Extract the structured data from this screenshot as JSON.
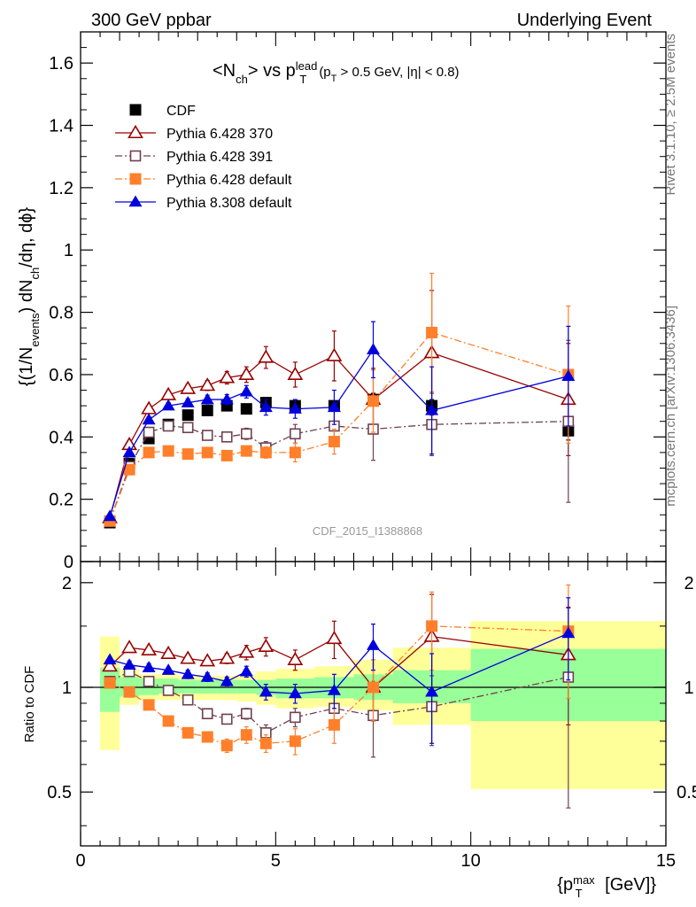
{
  "header": {
    "left": "300 GeV ppbar",
    "right": "Underlying Event"
  },
  "side_labels": {
    "rivet": "Rivet 3.1.10, ≥ 2.5M events",
    "mcplots": "mcplots.cern.ch [arXiv:1306.3436]"
  },
  "watermark": "CDF_2015_I1388868",
  "chart_data": [
    {
      "type": "scatter",
      "title": "<N_ch> vs p_T^lead (p_T > 0.5 GeV, |η| < 0.8)",
      "ylabel": "{(1/N_events) dN_ch/dη, dϕ}",
      "ylim": [
        0,
        1.7
      ],
      "yticks": [
        0,
        0.2,
        0.4,
        0.6,
        0.8,
        1,
        1.2,
        1.4,
        1.6
      ],
      "ytick_labels": [
        "0",
        "0.2",
        "0.4",
        "0.6",
        "0.8",
        "1",
        "1.2",
        "1.4",
        "1.6"
      ],
      "xlim": [
        0,
        15
      ],
      "legend_placement": "top-left",
      "series": [
        {
          "name": "CDF",
          "color": "#000000",
          "marker": "filled-square",
          "line": "none",
          "x": [
            0.75,
            1.25,
            1.75,
            2.25,
            2.75,
            3.25,
            3.75,
            4.25,
            4.75,
            5.5,
            6.5,
            7.5,
            9,
            12.5
          ],
          "y": [
            0.125,
            0.315,
            0.395,
            0.44,
            0.47,
            0.485,
            0.5,
            0.49,
            0.51,
            0.5,
            0.5,
            0.52,
            0.5,
            0.42
          ],
          "err": [
            0.005,
            0.005,
            0.005,
            0.006,
            0.006,
            0.007,
            0.008,
            0.009,
            0.01,
            0.012,
            0.015,
            0.02,
            0.02,
            0.03
          ]
        },
        {
          "name": "Pythia 6.428 370",
          "color": "#990000",
          "marker": "open-triangle",
          "line": "solid",
          "x": [
            0.75,
            1.25,
            1.75,
            2.25,
            2.75,
            3.25,
            3.75,
            4.25,
            4.75,
            5.5,
            6.5,
            7.5,
            9,
            12.5
          ],
          "y": [
            0.14,
            0.375,
            0.49,
            0.535,
            0.555,
            0.565,
            0.59,
            0.6,
            0.655,
            0.6,
            0.66,
            0.52,
            0.67,
            0.52
          ],
          "err": [
            0.004,
            0.008,
            0.01,
            0.012,
            0.014,
            0.016,
            0.02,
            0.025,
            0.035,
            0.04,
            0.08,
            0.1,
            0.2,
            0.18
          ]
        },
        {
          "name": "Pythia 6.428 391",
          "color": "#70404f",
          "marker": "open-square",
          "line": "dashdot",
          "x": [
            0.75,
            1.25,
            1.75,
            2.25,
            2.75,
            3.25,
            3.75,
            4.25,
            4.75,
            5.5,
            6.5,
            7.5,
            9,
            12.5
          ],
          "y": [
            0.13,
            0.305,
            0.415,
            0.435,
            0.43,
            0.405,
            0.4,
            0.41,
            0.365,
            0.41,
            0.435,
            0.425,
            0.44,
            0.45
          ],
          "err": [
            0.004,
            0.008,
            0.01,
            0.012,
            0.014,
            0.015,
            0.016,
            0.018,
            0.02,
            0.03,
            0.05,
            0.1,
            0.1,
            0.26
          ]
        },
        {
          "name": "Pythia 6.428 default",
          "color": "#ff7f2a",
          "marker": "filled-square",
          "line": "dashdot",
          "x": [
            0.75,
            1.25,
            1.75,
            2.25,
            2.75,
            3.25,
            3.75,
            4.25,
            4.75,
            5.5,
            6.5,
            7.5,
            9,
            12.5
          ],
          "y": [
            0.13,
            0.295,
            0.35,
            0.355,
            0.345,
            0.35,
            0.34,
            0.355,
            0.35,
            0.35,
            0.385,
            0.515,
            0.735,
            0.6
          ],
          "err": [
            0.004,
            0.006,
            0.008,
            0.008,
            0.01,
            0.01,
            0.012,
            0.015,
            0.018,
            0.03,
            0.04,
            0.1,
            0.19,
            0.22
          ]
        },
        {
          "name": "Pythia 8.308 default",
          "color": "#0000dd",
          "marker": "filled-triangle",
          "line": "solid",
          "x": [
            0.75,
            1.25,
            1.75,
            2.25,
            2.75,
            3.25,
            3.75,
            4.25,
            4.75,
            5.5,
            6.5,
            7.5,
            9,
            12.5
          ],
          "y": [
            0.145,
            0.35,
            0.455,
            0.5,
            0.51,
            0.52,
            0.52,
            0.545,
            0.495,
            0.49,
            0.495,
            0.68,
            0.485,
            0.595
          ],
          "err": [
            0.004,
            0.008,
            0.01,
            0.01,
            0.012,
            0.014,
            0.016,
            0.02,
            0.025,
            0.03,
            0.055,
            0.09,
            0.14,
            0.16
          ]
        }
      ]
    },
    {
      "type": "scatter",
      "ylabel": "Ratio to CDF",
      "xlabel": "{p_T^max [GeV]}",
      "ylog": true,
      "ylim": [
        0.35,
        2.3
      ],
      "yticks": [
        0.5,
        1,
        2
      ],
      "ytick_labels": [
        "0.5",
        "1",
        "2"
      ],
      "xlim": [
        0,
        15
      ],
      "xticks": [
        0,
        5,
        10,
        15
      ],
      "xtick_labels": [
        "0",
        "5",
        "10",
        "15"
      ],
      "reference_line": 1,
      "bands": {
        "edges": [
          0.5,
          1.0,
          1.5,
          2.0,
          2.5,
          3.0,
          3.5,
          4.0,
          4.5,
          5.0,
          6.0,
          7.0,
          8.0,
          10.0,
          15.0
        ],
        "inner": {
          "color": "#99ff99",
          "lo": [
            0.85,
            0.94,
            0.95,
            0.96,
            0.96,
            0.96,
            0.96,
            0.96,
            0.95,
            0.93,
            0.93,
            0.92,
            0.9,
            0.8
          ],
          "hi": [
            1.14,
            1.07,
            1.06,
            1.06,
            1.05,
            1.05,
            1.05,
            1.05,
            1.05,
            1.06,
            1.07,
            1.09,
            1.12,
            1.29
          ]
        },
        "outer": {
          "color": "#ffff99",
          "lo": [
            0.66,
            0.89,
            0.92,
            0.92,
            0.92,
            0.92,
            0.92,
            0.91,
            0.89,
            0.87,
            0.88,
            0.86,
            0.78,
            0.51
          ],
          "hi": [
            1.4,
            1.13,
            1.09,
            1.09,
            1.08,
            1.08,
            1.08,
            1.09,
            1.11,
            1.13,
            1.15,
            1.2,
            1.3,
            1.55
          ]
        }
      },
      "series": [
        {
          "name": "CDF",
          "color": "#000000",
          "marker": "filled-square",
          "line": "none",
          "x": [
            0.75
          ],
          "y": [
            1.03
          ],
          "err": [
            0.01
          ]
        },
        {
          "name": "Pythia 6.428 370",
          "color": "#990000",
          "marker": "open-triangle",
          "line": "solid",
          "x": [
            0.75,
            1.25,
            1.75,
            2.25,
            2.75,
            3.25,
            3.75,
            4.25,
            4.75,
            5.5,
            6.5,
            7.5,
            9,
            12.5
          ],
          "y": [
            1.15,
            1.3,
            1.28,
            1.25,
            1.21,
            1.19,
            1.21,
            1.26,
            1.31,
            1.2,
            1.38,
            1.0,
            1.4,
            1.24
          ],
          "err": [
            0.02,
            0.03,
            0.03,
            0.03,
            0.03,
            0.03,
            0.04,
            0.06,
            0.08,
            0.08,
            0.17,
            0.2,
            0.45,
            0.46
          ]
        },
        {
          "name": "Pythia 6.428 391",
          "color": "#70404f",
          "marker": "open-square",
          "line": "dashdot",
          "x": [
            0.75,
            1.25,
            1.75,
            2.25,
            2.75,
            3.25,
            3.75,
            4.25,
            4.75,
            5.5,
            6.5,
            7.5,
            9,
            12.5
          ],
          "y": [
            1.04,
            1.11,
            1.04,
            0.98,
            0.92,
            0.84,
            0.81,
            0.84,
            0.74,
            0.82,
            0.87,
            0.83,
            0.88,
            1.07
          ],
          "err": [
            0.01,
            0.02,
            0.02,
            0.02,
            0.02,
            0.02,
            0.02,
            0.03,
            0.04,
            0.05,
            0.09,
            0.2,
            0.2,
            0.62
          ]
        },
        {
          "name": "Pythia 6.428 default",
          "color": "#ff7f2a",
          "marker": "filled-square",
          "line": "dashdot",
          "x": [
            0.75,
            1.25,
            1.75,
            2.25,
            2.75,
            3.25,
            3.75,
            4.25,
            4.75,
            5.5,
            6.5,
            7.5,
            9,
            12.5
          ],
          "y": [
            1.03,
            0.97,
            0.89,
            0.8,
            0.74,
            0.72,
            0.68,
            0.73,
            0.69,
            0.7,
            0.78,
            1.0,
            1.5,
            1.45
          ],
          "err": [
            0.01,
            0.02,
            0.02,
            0.02,
            0.02,
            0.02,
            0.03,
            0.04,
            0.04,
            0.06,
            0.09,
            0.2,
            0.38,
            0.52
          ]
        },
        {
          "name": "Pythia 8.308 default",
          "color": "#0000dd",
          "marker": "filled-triangle",
          "line": "solid",
          "x": [
            0.75,
            1.25,
            1.75,
            2.25,
            2.75,
            3.25,
            3.75,
            4.25,
            4.75,
            5.5,
            6.5,
            7.5,
            9,
            12.5
          ],
          "y": [
            1.2,
            1.16,
            1.14,
            1.12,
            1.09,
            1.07,
            1.04,
            1.11,
            0.97,
            0.96,
            0.98,
            1.32,
            0.97,
            1.43
          ],
          "err": [
            0.02,
            0.03,
            0.03,
            0.02,
            0.03,
            0.03,
            0.03,
            0.04,
            0.05,
            0.06,
            0.11,
            0.2,
            0.28,
            0.38
          ]
        }
      ]
    }
  ]
}
